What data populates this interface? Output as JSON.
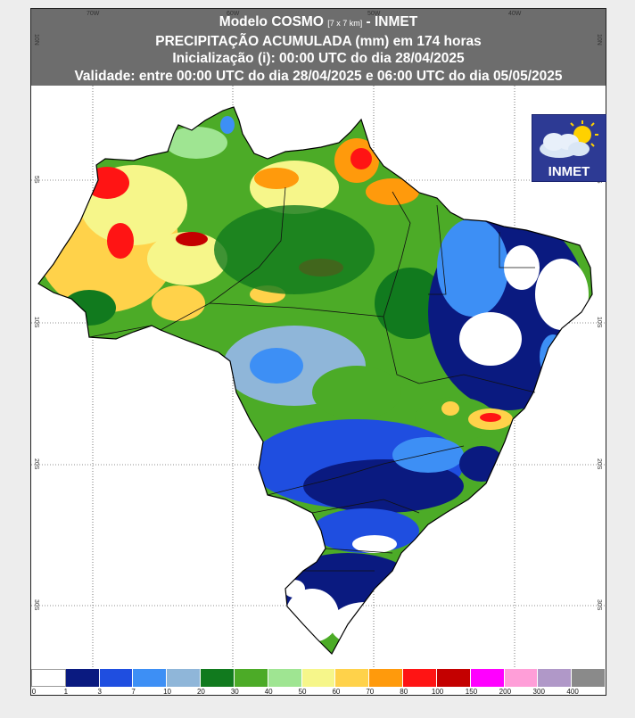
{
  "title": {
    "line1_a": "Modelo COSMO ",
    "line1_small": "[7 x 7 km]",
    "line1_b": " - INMET",
    "line2": "PRECIPITAÇÃO ACUMULADA (mm) em 174 horas",
    "line3": "Inicialização (i): 00:00 UTC do dia 28/04/2025",
    "line4": "Validade: entre 00:00 UTC do dia 28/04/2025 e 06:00 UTC do dia 05/05/2025"
  },
  "logo": {
    "text": "INMET",
    "icon": "sun-cloud-icon"
  },
  "grid_labels": {
    "top": [
      "70W",
      "60W",
      "50W",
      "40W"
    ],
    "left": [
      "10N",
      "5S",
      "10S",
      "20S",
      "30S"
    ],
    "right": [
      "10N",
      "5S",
      "10S",
      "20S",
      "30S"
    ]
  },
  "legend": {
    "colors": [
      "#ffffff",
      "#0a1a80",
      "#1f4ee0",
      "#3d8ff5",
      "#8fb6d9",
      "#117a1e",
      "#4cab27",
      "#9fe592",
      "#f6f68a",
      "#ffd24a",
      "#ff9a0c",
      "#ff1414",
      "#c40000",
      "#ff00ff",
      "#ff9ed8",
      "#b098c8",
      "#8a8a8a"
    ],
    "ticks": [
      "0",
      "1",
      "3",
      "7",
      "10",
      "20",
      "30",
      "40",
      "50",
      "60",
      "70",
      "80",
      "100",
      "150",
      "200",
      "300",
      "400"
    ]
  }
}
